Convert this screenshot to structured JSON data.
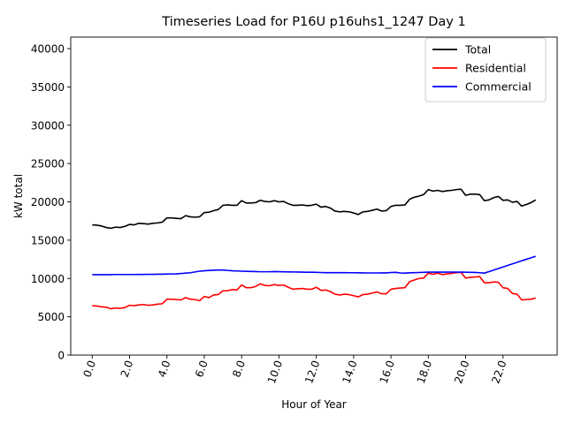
{
  "chart_data": {
    "type": "line",
    "title": "Timeseries Load for P16U p16uhs1_1247  Day 1",
    "xlabel": "Hour of Year",
    "ylabel": "kW total",
    "xlim": [
      -1.15,
      24.9
    ],
    "ylim": [
      0,
      41500
    ],
    "xticks": [
      0,
      2,
      4,
      6,
      8,
      10,
      12,
      14,
      16,
      18,
      20,
      22
    ],
    "xtick_labels": [
      "0.0",
      "2.0",
      "4.0",
      "6.0",
      "8.0",
      "10.0",
      "12.0",
      "14.0",
      "16.0",
      "18.0",
      "20.0",
      "22.0"
    ],
    "yticks": [
      0,
      5000,
      10000,
      15000,
      20000,
      25000,
      30000,
      35000,
      40000
    ],
    "ytick_labels": [
      "0",
      "5000",
      "10000",
      "15000",
      "20000",
      "25000",
      "30000",
      "35000",
      "40000"
    ],
    "legend_position": "top-right",
    "x": [
      0,
      0.25,
      0.5,
      0.75,
      1,
      1.25,
      1.5,
      1.75,
      2,
      2.25,
      2.5,
      2.75,
      3,
      3.25,
      3.5,
      3.75,
      4,
      4.25,
      4.5,
      4.75,
      5,
      5.25,
      5.5,
      5.75,
      6,
      6.25,
      6.5,
      6.75,
      7,
      7.25,
      7.5,
      7.75,
      8,
      8.25,
      8.5,
      8.75,
      9,
      9.25,
      9.5,
      9.75,
      10,
      10.25,
      10.5,
      10.75,
      11,
      11.25,
      11.5,
      11.75,
      12,
      12.25,
      12.5,
      12.75,
      13,
      13.25,
      13.5,
      13.75,
      14,
      14.25,
      14.5,
      14.75,
      15,
      15.25,
      15.5,
      15.75,
      16,
      16.25,
      16.5,
      16.75,
      17,
      17.25,
      17.5,
      17.75,
      18,
      18.25,
      18.5,
      18.75,
      19,
      19.25,
      19.5,
      19.75,
      20,
      20.25,
      20.5,
      20.75,
      21,
      21.25,
      21.5,
      21.75,
      22,
      22.25,
      22.5,
      22.75,
      23,
      23.25,
      23.5,
      23.75
    ],
    "series": [
      {
        "name": "Total",
        "color": "#000000",
        "values": [
          17000,
          16950,
          16850,
          16650,
          16550,
          16700,
          16650,
          16800,
          17050,
          17000,
          17200,
          17150,
          17100,
          17200,
          17250,
          17350,
          17900,
          17900,
          17850,
          17800,
          18200,
          18050,
          18000,
          18050,
          18600,
          18650,
          18850,
          19000,
          19550,
          19600,
          19550,
          19550,
          20150,
          19850,
          19850,
          19900,
          20200,
          20050,
          20000,
          20150,
          20000,
          20050,
          19750,
          19550,
          19550,
          19600,
          19500,
          19550,
          19700,
          19300,
          19400,
          19200,
          18800,
          18700,
          18750,
          18700,
          18550,
          18350,
          18700,
          18750,
          18900,
          19050,
          18800,
          18850,
          19400,
          19550,
          19550,
          19600,
          20350,
          20600,
          20750,
          20950,
          21600,
          21400,
          21500,
          21350,
          21450,
          21500,
          21600,
          21650,
          20850,
          21000,
          21000,
          20950,
          20150,
          20250,
          20550,
          20700,
          20200,
          20250,
          19950,
          20050,
          19450,
          19650,
          19900,
          20250
        ]
      },
      {
        "name": "Residential",
        "color": "#ff0000",
        "values": [
          6450,
          6400,
          6300,
          6250,
          6050,
          6150,
          6100,
          6200,
          6500,
          6450,
          6550,
          6600,
          6500,
          6550,
          6650,
          6700,
          7300,
          7300,
          7250,
          7200,
          7500,
          7300,
          7250,
          7100,
          7650,
          7500,
          7850,
          7900,
          8400,
          8400,
          8550,
          8500,
          9150,
          8800,
          8800,
          8950,
          9300,
          9100,
          9050,
          9200,
          9100,
          9150,
          8850,
          8600,
          8650,
          8700,
          8600,
          8600,
          8850,
          8450,
          8500,
          8300,
          7950,
          7850,
          7950,
          7900,
          7750,
          7600,
          7900,
          7950,
          8100,
          8250,
          8000,
          8000,
          8600,
          8700,
          8750,
          8800,
          9600,
          9800,
          10000,
          10050,
          10700,
          10550,
          10700,
          10500,
          10600,
          10650,
          10750,
          10800,
          10050,
          10150,
          10200,
          10250,
          9450,
          9450,
          9550,
          9500,
          8800,
          8700,
          8050,
          7950,
          7200,
          7250,
          7300,
          7450
        ]
      },
      {
        "name": "Commercial",
        "color": "#0000ff",
        "values": [
          10500,
          10500,
          10500,
          10500,
          10500,
          10520,
          10520,
          10520,
          10520,
          10520,
          10530,
          10530,
          10540,
          10540,
          10550,
          10560,
          10580,
          10590,
          10600,
          10650,
          10700,
          10750,
          10850,
          10950,
          11000,
          11050,
          11070,
          11100,
          11100,
          11050,
          11000,
          10980,
          10950,
          10930,
          10920,
          10900,
          10880,
          10880,
          10880,
          10900,
          10890,
          10870,
          10860,
          10850,
          10840,
          10830,
          10820,
          10810,
          10800,
          10780,
          10760,
          10760,
          10760,
          10760,
          10760,
          10750,
          10750,
          10740,
          10730,
          10720,
          10720,
          10720,
          10730,
          10730,
          10780,
          10800,
          10720,
          10700,
          10740,
          10760,
          10780,
          10800,
          10830,
          10830,
          10830,
          10830,
          10830,
          10830,
          10830,
          10830,
          10820,
          10800,
          10790,
          10750,
          10700,
          10900,
          11100,
          11300,
          11500,
          11700,
          11900,
          12100,
          12300,
          12500,
          12700,
          12900
        ]
      }
    ]
  }
}
